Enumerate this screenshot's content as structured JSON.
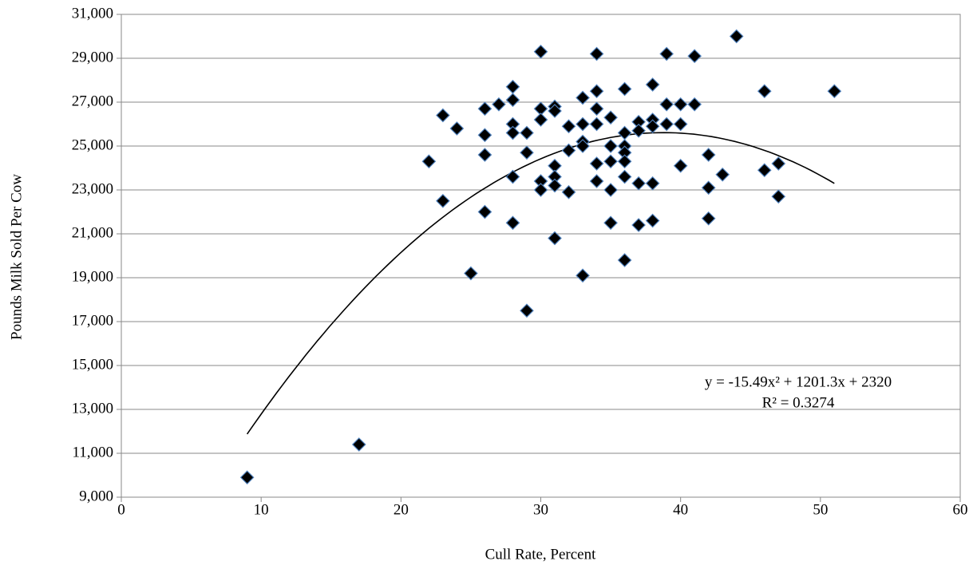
{
  "chart_data": {
    "type": "scatter",
    "x_label": "Cull Rate, Percent",
    "y_label": "Pounds Milk Sold Per Cow",
    "xlim": [
      0,
      60
    ],
    "xticks": [
      0,
      10,
      20,
      30,
      40,
      50,
      60
    ],
    "ylim": [
      9000,
      31000
    ],
    "yticks": [
      {
        "value": 9000,
        "label": "9,000"
      },
      {
        "value": 11000,
        "label": "11,000"
      },
      {
        "value": 13000,
        "label": "13,000"
      },
      {
        "value": 15000,
        "label": "15,000"
      },
      {
        "value": 17000,
        "label": "17,000"
      },
      {
        "value": 19000,
        "label": "19,000"
      },
      {
        "value": 21000,
        "label": "21,000"
      },
      {
        "value": 23000,
        "label": "23,000"
      },
      {
        "value": 25000,
        "label": "25,000"
      },
      {
        "value": 27000,
        "label": "27,000"
      },
      {
        "value": 29000,
        "label": "29,000"
      },
      {
        "value": 31000,
        "label": "31,000"
      }
    ],
    "grid": true,
    "color": "#000000",
    "edge_color": "#4f81bd",
    "x": [
      9,
      17,
      22,
      23,
      23,
      24,
      25,
      26,
      26,
      26,
      26,
      27,
      28,
      28,
      28,
      28,
      28,
      28,
      29,
      29,
      29,
      30,
      30,
      30,
      30,
      30,
      31,
      31,
      31,
      31,
      31,
      31,
      32,
      32,
      32,
      33,
      33,
      33,
      33,
      33,
      34,
      34,
      34,
      34,
      34,
      34,
      35,
      35,
      35,
      35,
      35,
      36,
      36,
      36,
      36,
      36,
      36,
      36,
      37,
      37,
      37,
      37,
      38,
      38,
      38,
      38,
      38,
      39,
      39,
      39,
      40,
      40,
      40,
      41,
      41,
      42,
      42,
      42,
      43,
      44,
      46,
      46,
      47,
      47,
      51
    ],
    "values": [
      9900,
      11400,
      24300,
      26400,
      22500,
      25800,
      19200,
      26700,
      25500,
      24600,
      22000,
      26900,
      27700,
      27100,
      26000,
      25600,
      23600,
      21500,
      25600,
      24700,
      17500,
      29300,
      26700,
      26200,
      23400,
      23000,
      26800,
      26600,
      24100,
      23600,
      23200,
      20800,
      25900,
      24800,
      22900,
      27200,
      26000,
      25200,
      25000,
      19100,
      29200,
      27500,
      26700,
      26000,
      24200,
      23400,
      26300,
      25000,
      24300,
      23000,
      21500,
      27600,
      25600,
      25000,
      24700,
      24300,
      23600,
      19800,
      26100,
      25700,
      23300,
      21400,
      27800,
      26200,
      25900,
      23300,
      21600,
      29200,
      26900,
      26000,
      26900,
      26000,
      24100,
      29100,
      26900,
      24600,
      23100,
      21700,
      23700,
      30000,
      27500,
      23900,
      24200,
      22700,
      27500
    ],
    "trendline": {
      "equation": "y = -15.49x² + 1201.3x + 2320",
      "r_squared": "R² = 0.3274",
      "coefficients": [
        -15.49,
        1201.3,
        2320
      ],
      "color": "#000000"
    }
  }
}
